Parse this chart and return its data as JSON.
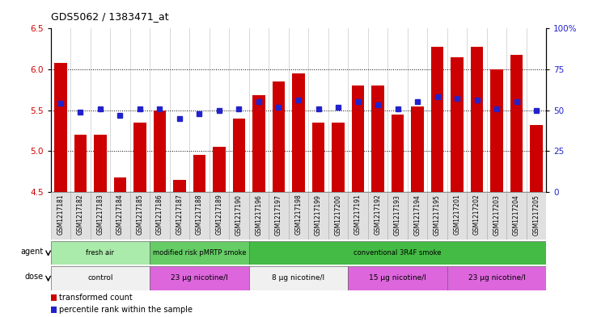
{
  "title": "GDS5062 / 1383471_at",
  "samples": [
    "GSM1217181",
    "GSM1217182",
    "GSM1217183",
    "GSM1217184",
    "GSM1217185",
    "GSM1217186",
    "GSM1217187",
    "GSM1217188",
    "GSM1217189",
    "GSM1217190",
    "GSM1217196",
    "GSM1217197",
    "GSM1217198",
    "GSM1217199",
    "GSM1217200",
    "GSM1217191",
    "GSM1217192",
    "GSM1217193",
    "GSM1217194",
    "GSM1217195",
    "GSM1217201",
    "GSM1217202",
    "GSM1217203",
    "GSM1217204",
    "GSM1217205"
  ],
  "bar_values": [
    6.08,
    5.2,
    5.2,
    4.68,
    5.35,
    5.5,
    4.65,
    4.95,
    5.05,
    5.4,
    5.68,
    5.85,
    5.95,
    5.35,
    5.35,
    5.8,
    5.8,
    5.45,
    5.55,
    6.28,
    6.15,
    6.28,
    6.0,
    6.18,
    5.32
  ],
  "percentile_values": [
    54,
    49,
    51,
    47,
    51,
    51,
    45,
    48,
    50,
    51,
    55,
    52,
    56,
    51,
    52,
    55,
    53,
    51,
    55,
    58,
    57,
    56,
    51,
    55,
    50
  ],
  "bar_color": "#cc0000",
  "percentile_color": "#2222cc",
  "ylim_left": [
    4.5,
    6.5
  ],
  "ylim_right": [
    0,
    100
  ],
  "yticks_left": [
    4.5,
    5.0,
    5.5,
    6.0,
    6.5
  ],
  "yticks_right": [
    0,
    25,
    50,
    75,
    100
  ],
  "grid_lines": [
    5.0,
    5.5,
    6.0
  ],
  "agent_groups": [
    {
      "label": "fresh air",
      "start": 0,
      "end": 5,
      "color": "#aaeaaa"
    },
    {
      "label": "modified risk pMRTP smoke",
      "start": 5,
      "end": 10,
      "color": "#66cc66"
    },
    {
      "label": "conventional 3R4F smoke",
      "start": 10,
      "end": 25,
      "color": "#44bb44"
    }
  ],
  "dose_groups": [
    {
      "label": "control",
      "start": 0,
      "end": 5,
      "color": "#f0f0f0"
    },
    {
      "label": "23 μg nicotine/l",
      "start": 5,
      "end": 10,
      "color": "#dd66dd"
    },
    {
      "label": "8 μg nicotine/l",
      "start": 10,
      "end": 15,
      "color": "#f0f0f0"
    },
    {
      "label": "15 μg nicotine/l",
      "start": 15,
      "end": 20,
      "color": "#dd66dd"
    },
    {
      "label": "23 μg nicotine/l",
      "start": 20,
      "end": 25,
      "color": "#dd66dd"
    }
  ],
  "legend_items": [
    {
      "label": "transformed count",
      "color": "#cc0000"
    },
    {
      "label": "percentile rank within the sample",
      "color": "#2222cc"
    }
  ]
}
